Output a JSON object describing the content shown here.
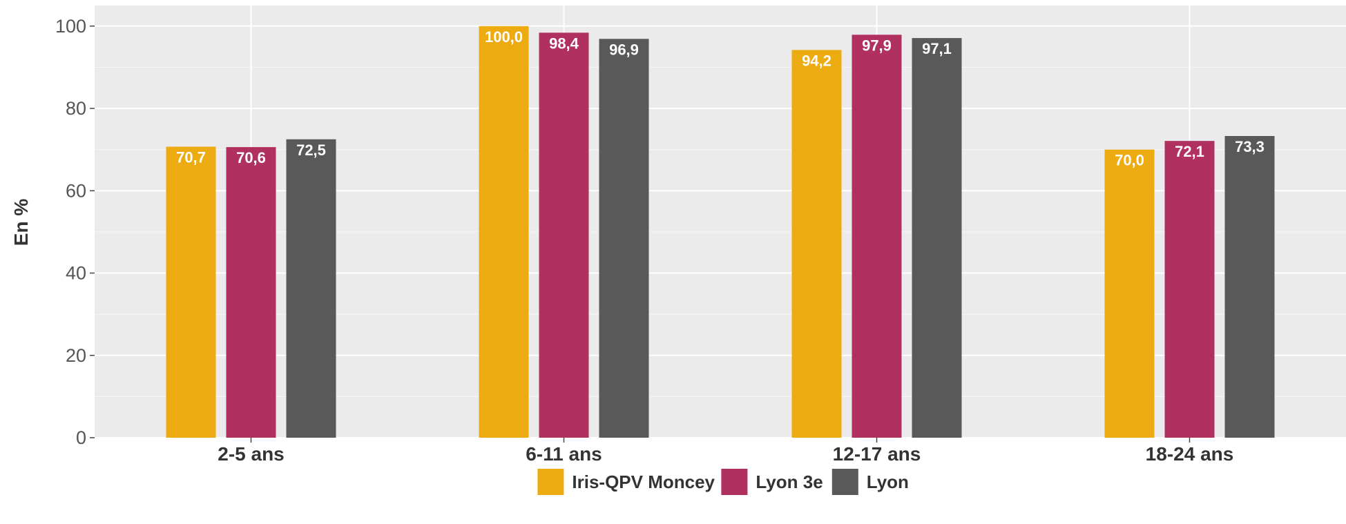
{
  "chart_data": {
    "type": "bar",
    "title": "",
    "xlabel": "",
    "ylabel": "En %",
    "ylim": [
      0,
      105
    ],
    "yticks": [
      0,
      20,
      40,
      60,
      80,
      100
    ],
    "grid": true,
    "legend_position": "bottom",
    "categories": [
      "2-5 ans",
      "6-11 ans",
      "12-17 ans",
      "18-24 ans"
    ],
    "series": [
      {
        "name": "Iris-QPV Moncey",
        "color": "#ECAB10",
        "values": [
          70.7,
          100.0,
          94.2,
          70.0
        ],
        "labels": [
          "70,7",
          "100,0",
          "94,2",
          "70,0"
        ]
      },
      {
        "name": "Lyon 3e",
        "color": "#B03060",
        "values": [
          70.6,
          98.4,
          97.9,
          72.1
        ],
        "labels": [
          "70,6",
          "98,4",
          "97,9",
          "72,1"
        ]
      },
      {
        "name": "Lyon",
        "color": "#595959",
        "values": [
          72.5,
          96.9,
          97.1,
          73.3
        ],
        "labels": [
          "72,5",
          "96,9",
          "97,1",
          "73,3"
        ]
      }
    ]
  }
}
